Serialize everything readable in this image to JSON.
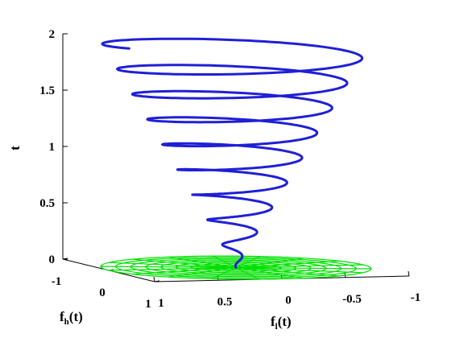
{
  "chart_data": {
    "type": "line",
    "subtype": "3d-parametric",
    "title": "",
    "zlabel": "t",
    "ylabel_main": "f",
    "ylabel_sub": "h",
    "ylabel_tail": "(t)",
    "xlabel_main": "f",
    "xlabel_sub": "l",
    "xlabel_tail": "(t)",
    "zlim": [
      0,
      2
    ],
    "zticks": [
      "0",
      "0.5",
      "1",
      "1.5",
      "2"
    ],
    "xticks": [
      "1",
      "0.5",
      "0",
      "-0.5",
      "-1"
    ],
    "yticks": [
      "-1",
      "0",
      "1"
    ],
    "grid": false,
    "series": [
      {
        "role": "spiral-curve",
        "color": "#1f1fd6",
        "description_fn": "x=(t/2)cos(2*pi*4.5*t), y=(t/2)sin(2*pi*4.5*t), z=t",
        "t_range": [
          0,
          2
        ],
        "turns": 9
      },
      {
        "role": "projection-mesh",
        "color": "#00e000",
        "plane": "z=0"
      }
    ]
  }
}
